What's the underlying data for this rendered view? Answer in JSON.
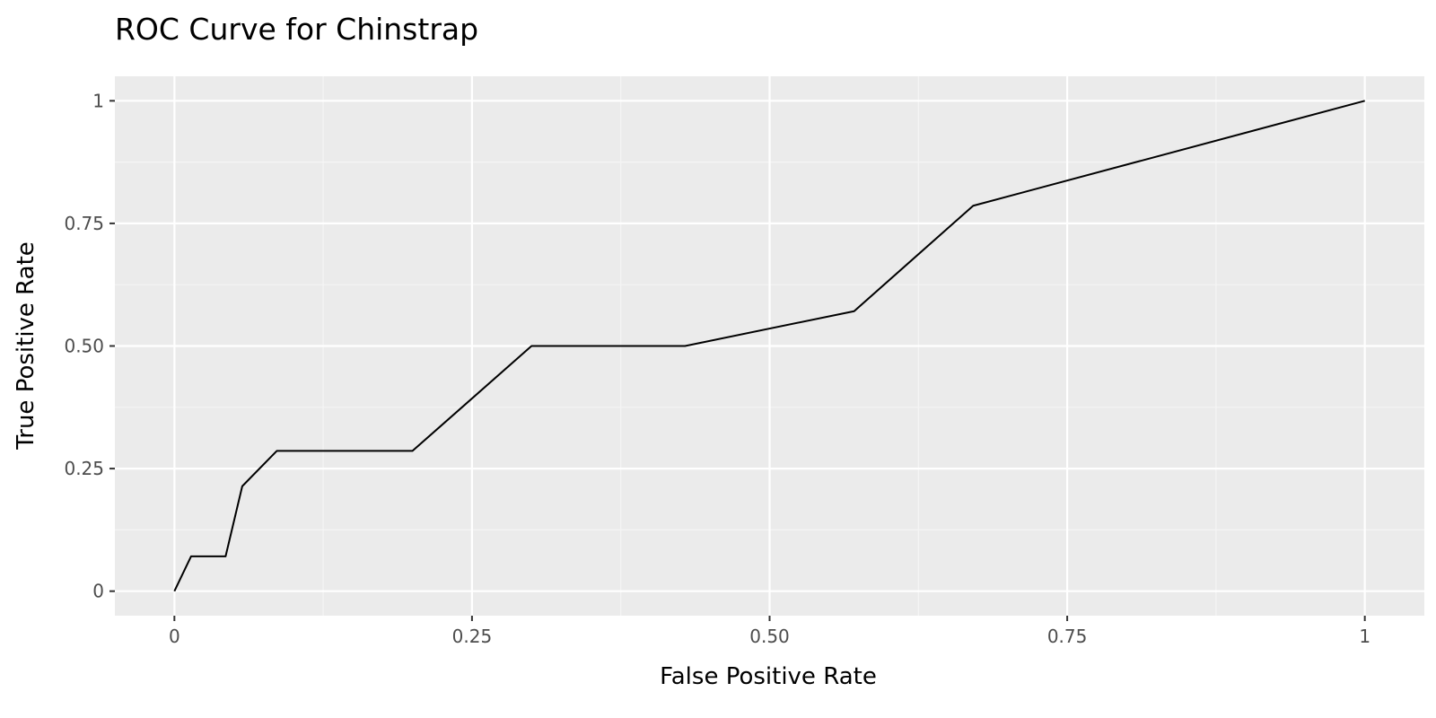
{
  "chart_data": {
    "type": "line",
    "title": "ROC Curve for Chinstrap",
    "xlabel": "False Positive Rate",
    "ylabel": "True Positive Rate",
    "xlim": [
      -0.05,
      1.05
    ],
    "ylim": [
      -0.05,
      1.05
    ],
    "grid": true,
    "legend": "none",
    "x_ticks": [
      {
        "value": 0,
        "label": "0"
      },
      {
        "value": 0.25,
        "label": "0.25"
      },
      {
        "value": 0.5,
        "label": "0.50"
      },
      {
        "value": 0.75,
        "label": "0.75"
      },
      {
        "value": 1,
        "label": "1"
      }
    ],
    "y_ticks": [
      {
        "value": 0,
        "label": "0"
      },
      {
        "value": 0.25,
        "label": "0.25"
      },
      {
        "value": 0.5,
        "label": "0.50"
      },
      {
        "value": 0.75,
        "label": "0.75"
      },
      {
        "value": 1,
        "label": "1"
      }
    ],
    "series": [
      {
        "x": [
          0,
          0.014,
          0.043,
          0.057,
          0.086,
          0.2,
          0.3,
          0.429,
          0.571,
          0.671,
          1
        ],
        "y": [
          0,
          0.071,
          0.071,
          0.214,
          0.286,
          0.286,
          0.5,
          0.5,
          0.571,
          0.786,
          1
        ]
      }
    ],
    "colors": {
      "panel_background": "#ebebeb",
      "grid_major": "#ffffff",
      "grid_minor": "#f5f5f5",
      "line": "#000000",
      "tick_mark": "#333333"
    }
  }
}
